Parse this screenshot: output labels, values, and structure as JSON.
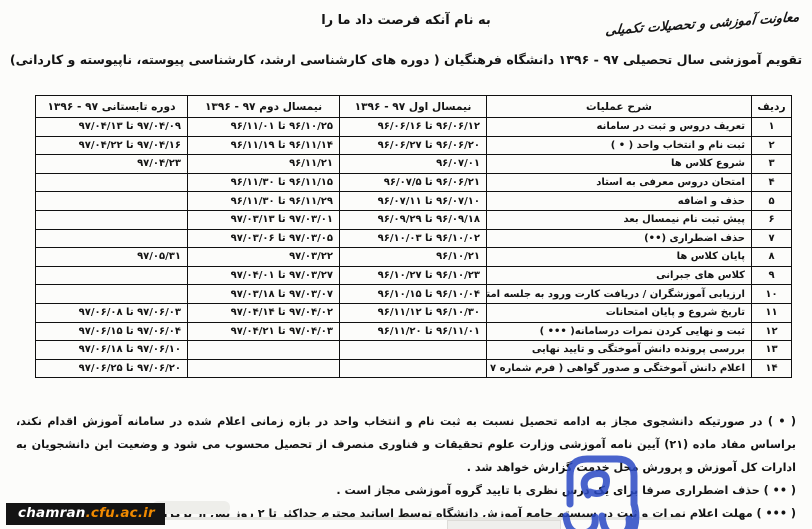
{
  "header": {
    "dept_signature": "معاونت آموزشی و تحصیلات تکمیلی",
    "bismillah": "به نام آنکه فرصت داد ما را",
    "title": "تقویم آموزشی سال تحصیلی ۹۷ - ۱۳۹۶ دانشگاه فرهنگیان ( دوره های کارشناسی ارشد، کارشناسی پیوسته، ناپیوسته و کاردانی)"
  },
  "table": {
    "headers": {
      "no": "ردیف",
      "operation": "شرح عملیات",
      "semester1": "نیمسال اول ۹۷ - ۱۳۹۶",
      "semester2": "نیمسال دوم ۹۷ - ۱۳۹۶",
      "summer": "دوره تابستانی ۹۷ - ۱۳۹۶"
    },
    "rows": [
      {
        "no": "۱",
        "operation": "تعریف دروس و ثبت در سامانه",
        "semester1": "۹۶/۰۶/۱۲ تا ۹۶/۰۶/۱۶",
        "semester2": "۹۶/۱۰/۲۵ تا ۹۶/۱۱/۰۱",
        "summer": "۹۷/۰۴/۰۹ تا ۹۷/۰۴/۱۳"
      },
      {
        "no": "۲",
        "operation": "ثبت نام و انتخاب واحد ( • )",
        "semester1": "۹۶/۰۶/۲۰ تا ۹۶/۰۶/۲۷",
        "semester2": "۹۶/۱۱/۱۴ تا ۹۶/۱۱/۱۹",
        "summer": "۹۷/۰۴/۱۶ تا ۹۷/۰۴/۲۲"
      },
      {
        "no": "۳",
        "operation": "شروع کلاس ها",
        "semester1": "۹۶/۰۷/۰۱",
        "semester2": "۹۶/۱۱/۲۱",
        "summer": "۹۷/۰۴/۲۳"
      },
      {
        "no": "۴",
        "operation": "امتحان دروس معرفی به استاد",
        "semester1": "۹۶/۰۶/۲۱ تا ۹۶/۰۷/۵",
        "semester2": "۹۶/۱۱/۱۵ تا ۹۶/۱۱/۳۰",
        "summer": ""
      },
      {
        "no": "۵",
        "operation": "حذف و اضافه",
        "semester1": "۹۶/۰۷/۱۰ تا ۹۶/۰۷/۱۱",
        "semester2": "۹۶/۱۱/۲۹ تا ۹۶/۱۱/۳۰",
        "summer": ""
      },
      {
        "no": "۶",
        "operation": "پیش ثبت نام نیمسال بعد",
        "semester1": "۹۶/۰۹/۱۸ تا ۹۶/۰۹/۲۹",
        "semester2": "۹۷/۰۳/۰۱ تا ۹۷/۰۳/۱۳",
        "summer": ""
      },
      {
        "no": "۷",
        "operation": "حذف اضطراری (••)",
        "semester1": "۹۶/۱۰/۰۲ تا ۹۶/۱۰/۰۳",
        "semester2": "۹۷/۰۳/۰۵ تا ۹۷/۰۳/۰۶",
        "summer": ""
      },
      {
        "no": "۸",
        "operation": "پایان کلاس ها",
        "semester1": "۹۶/۱۰/۲۱",
        "semester2": "۹۷/۰۳/۲۲",
        "summer": "۹۷/۰۵/۳۱"
      },
      {
        "no": "۹",
        "operation": "کلاس های جبرانی",
        "semester1": "۹۶/۱۰/۲۳ تا ۹۶/۱۰/۲۷",
        "semester2": "۹۷/۰۳/۲۷ تا ۹۷/۰۴/۰۱",
        "summer": ""
      },
      {
        "no": "۱۰",
        "operation": "ارزیابی آموزشگران / دریافت کارت ورود به جلسه امتحان",
        "semester1": "۹۶/۱۰/۰۴ تا ۹۶/۱۰/۱۵",
        "semester2": "۹۷/۰۳/۰۷ تا ۹۷/۰۳/۱۸",
        "summer": ""
      },
      {
        "no": "۱۱",
        "operation": "تاریخ شروع و پایان امتحانات",
        "semester1": "۹۶/۱۰/۳۰ تا ۹۶/۱۱/۱۲",
        "semester2": "۹۷/۰۴/۰۲ تا ۹۷/۰۴/۱۴",
        "summer": "۹۷/۰۶/۰۳ تا ۹۷/۰۶/۰۸"
      },
      {
        "no": "۱۲",
        "operation": "ثبت و نهایی کردن نمرات درسامانه( ••• )",
        "semester1": "۹۶/۱۱/۰۱ تا ۹۶/۱۱/۲۰",
        "semester2": "۹۷/۰۴/۰۳ تا ۹۷/۰۴/۲۱",
        "summer": "۹۷/۰۶/۰۴ تا ۹۷/۰۶/۱۵"
      },
      {
        "no": "۱۳",
        "operation": "بررسی پرونده دانش آموختگی و تایید نهایی",
        "semester1": "",
        "semester2": "",
        "summer": "۹۷/۰۶/۱۰ تا ۹۷/۰۶/۱۸"
      },
      {
        "no": "۱۴",
        "operation": "اعلام دانش آموختگی و صدور گواهی ( فرم شماره ۷ )",
        "semester1": "",
        "semester2": "",
        "summer": "۹۷/۰۶/۲۰ تا ۹۷/۰۶/۲۵"
      }
    ]
  },
  "footnotes": [
    "( • ) در صورتیکه دانشجوی مجاز به ادامه تحصیل نسبت به ثبت نام و انتخاب واحد در بازه زمانی اعلام شده در سامانه آموزش اقدام نکند، براساس مفاد ماده (۲۱) آیین نامه آموزشی وزارت علوم تحقیقات و فناوری منصرف از تحصیل محسوب می شود و وضعیت این دانشجویان به ادارات کل آموزش و پرورش محل خدمت گزارش خواهد شد .",
    "( •• ) حذف اضطراری صرفا برای یک درس نظری با تایید گروه آموزشی مجاز است .",
    "( ••• ) مهلت اعلام نمرات و ثبت در سیستم جامع آموزش دانشگاه توسط اساتید محترم حداکثر تا ۲ روز پس از برگزاری امتحانات می باشد."
  ],
  "watermark": {
    "site_name": "chamran",
    "site_domain": ".cfu.ac.ir"
  },
  "colors": {
    "ink": "#141414",
    "table_border": "#101010",
    "stamp_blue": "#2a49c4",
    "watermark_bg": "#141414",
    "watermark_white": "#ffffff",
    "watermark_orange": "#f08a00",
    "paper": "#fcfcfa"
  }
}
